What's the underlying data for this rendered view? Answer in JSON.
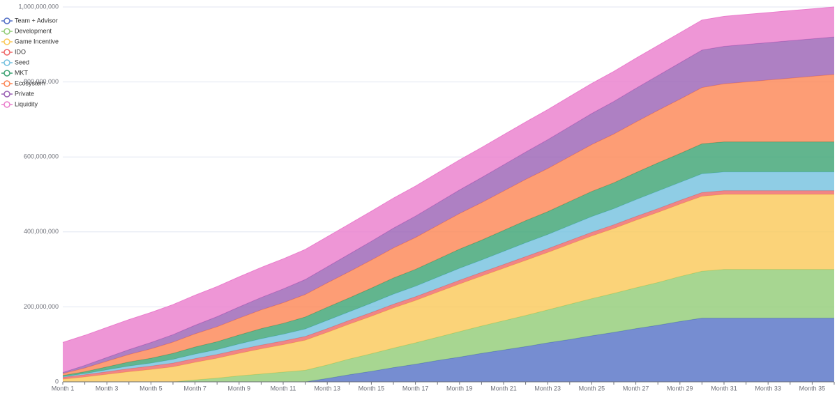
{
  "chart_data": {
    "type": "stacked_area",
    "categories": [
      "Month 1",
      null,
      "Month 3",
      null,
      "Month 5",
      null,
      "Month 7",
      null,
      "Month 9",
      null,
      "Month 11",
      null,
      "Month 13",
      null,
      "Month 15",
      null,
      "Month 17",
      null,
      "Month 19",
      null,
      "Month 21",
      null,
      "Month 23",
      null,
      "Month 25",
      null,
      "Month 27",
      null,
      "Month 29",
      null,
      "Month 31",
      null,
      "Month 33",
      null,
      "Month 35",
      null
    ],
    "ylim": [
      0,
      1000000000
    ],
    "yticks": [
      0,
      {
        "value": 200000000,
        "label": "200,000,000"
      },
      {
        "value": 400000000,
        "label": "400,000,000"
      },
      {
        "value": 600000000,
        "label": "600,000,000"
      },
      {
        "value": 800000000,
        "label": "800,000,000"
      },
      {
        "value": 1000000000,
        "label": "1,000,000,000"
      }
    ],
    "grid": true,
    "legend": "top-left",
    "series": [
      {
        "name": "Team + Advisor",
        "color": "#5470c6",
        "values": [
          0,
          0,
          0,
          0,
          0,
          0,
          0,
          0,
          0,
          0,
          0,
          0,
          9000000,
          19000000,
          28000000,
          38000000,
          47000000,
          57000000,
          66000000,
          76000000,
          85000000,
          94000000,
          104000000,
          113000000,
          123000000,
          132000000,
          142000000,
          151000000,
          161000000,
          170000000,
          170000000,
          170000000,
          170000000,
          170000000,
          170000000,
          170000000
        ]
      },
      {
        "name": "Development",
        "color": "#91cc75",
        "values": [
          0,
          0,
          0,
          0,
          0,
          0,
          5000000,
          10000000,
          16000000,
          21000000,
          26000000,
          31000000,
          36000000,
          42000000,
          47000000,
          52000000,
          57000000,
          62000000,
          68000000,
          73000000,
          78000000,
          83000000,
          88000000,
          94000000,
          99000000,
          104000000,
          109000000,
          114000000,
          120000000,
          125000000,
          130000000,
          130000000,
          130000000,
          130000000,
          130000000,
          130000000
        ]
      },
      {
        "name": "Game Incentive",
        "color": "#fac858",
        "values": [
          7000000,
          13000000,
          20000000,
          27000000,
          33000000,
          40000000,
          47000000,
          53000000,
          60000000,
          67000000,
          73000000,
          80000000,
          87000000,
          93000000,
          100000000,
          107000000,
          113000000,
          120000000,
          127000000,
          133000000,
          140000000,
          147000000,
          153000000,
          160000000,
          167000000,
          173000000,
          180000000,
          187000000,
          193000000,
          200000000,
          200000000,
          200000000,
          200000000,
          200000000,
          200000000,
          200000000
        ]
      },
      {
        "name": "IDO",
        "color": "#ee6666",
        "values": [
          5000000,
          6000000,
          7000000,
          8000000,
          9000000,
          10000000,
          10000000,
          10000000,
          10000000,
          10000000,
          10000000,
          10000000,
          10000000,
          10000000,
          10000000,
          10000000,
          10000000,
          10000000,
          10000000,
          10000000,
          10000000,
          10000000,
          10000000,
          10000000,
          10000000,
          10000000,
          10000000,
          10000000,
          10000000,
          10000000,
          10000000,
          10000000,
          10000000,
          10000000,
          10000000,
          10000000
        ]
      },
      {
        "name": "Seed",
        "color": "#73c0de",
        "values": [
          2000000,
          3000000,
          5000000,
          7000000,
          8000000,
          10000000,
          12000000,
          13000000,
          15000000,
          17000000,
          18000000,
          20000000,
          22000000,
          23000000,
          25000000,
          27000000,
          28000000,
          30000000,
          32000000,
          33000000,
          35000000,
          37000000,
          38000000,
          40000000,
          42000000,
          43000000,
          45000000,
          47000000,
          48000000,
          50000000,
          50000000,
          50000000,
          50000000,
          50000000,
          50000000,
          50000000
        ]
      },
      {
        "name": "MKT",
        "color": "#3ba272",
        "values": [
          3000000,
          5000000,
          8000000,
          11000000,
          13000000,
          16000000,
          19000000,
          21000000,
          24000000,
          27000000,
          29000000,
          32000000,
          35000000,
          37000000,
          40000000,
          43000000,
          45000000,
          48000000,
          51000000,
          53000000,
          56000000,
          59000000,
          61000000,
          64000000,
          67000000,
          69000000,
          72000000,
          75000000,
          77000000,
          80000000,
          80000000,
          80000000,
          80000000,
          80000000,
          80000000,
          80000000
        ]
      },
      {
        "name": "Ecosystem",
        "color": "#fc8452",
        "values": [
          5000000,
          10000000,
          15000000,
          20000000,
          25000000,
          30000000,
          35000000,
          40000000,
          45000000,
          50000000,
          55000000,
          60000000,
          65000000,
          70000000,
          75000000,
          80000000,
          85000000,
          90000000,
          95000000,
          100000000,
          105000000,
          110000000,
          115000000,
          120000000,
          125000000,
          130000000,
          135000000,
          140000000,
          145000000,
          150000000,
          155000000,
          160000000,
          165000000,
          170000000,
          175000000,
          180000000
        ]
      },
      {
        "name": "Private",
        "color": "#9a60b4",
        "values": [
          3000000,
          7000000,
          10000000,
          13000000,
          17000000,
          20000000,
          23000000,
          27000000,
          30000000,
          33000000,
          37000000,
          40000000,
          43000000,
          47000000,
          50000000,
          53000000,
          57000000,
          60000000,
          63000000,
          67000000,
          70000000,
          73000000,
          77000000,
          80000000,
          83000000,
          87000000,
          90000000,
          93000000,
          97000000,
          100000000,
          100000000,
          100000000,
          100000000,
          100000000,
          100000000,
          100000000
        ]
      },
      {
        "name": "Liquidity",
        "color": "#ea7ccc",
        "values": [
          80000000,
          80000000,
          80000000,
          80000000,
          80000000,
          80000000,
          80000000,
          80000000,
          80000000,
          80000000,
          80000000,
          80000000,
          80000000,
          80000000,
          80000000,
          80000000,
          80000000,
          80000000,
          80000000,
          80000000,
          80000000,
          80000000,
          80000000,
          80000000,
          80000000,
          80000000,
          80000000,
          80000000,
          80000000,
          80000000,
          80000000,
          80000000,
          80000000,
          80000000,
          80000000,
          80000000
        ]
      }
    ]
  }
}
